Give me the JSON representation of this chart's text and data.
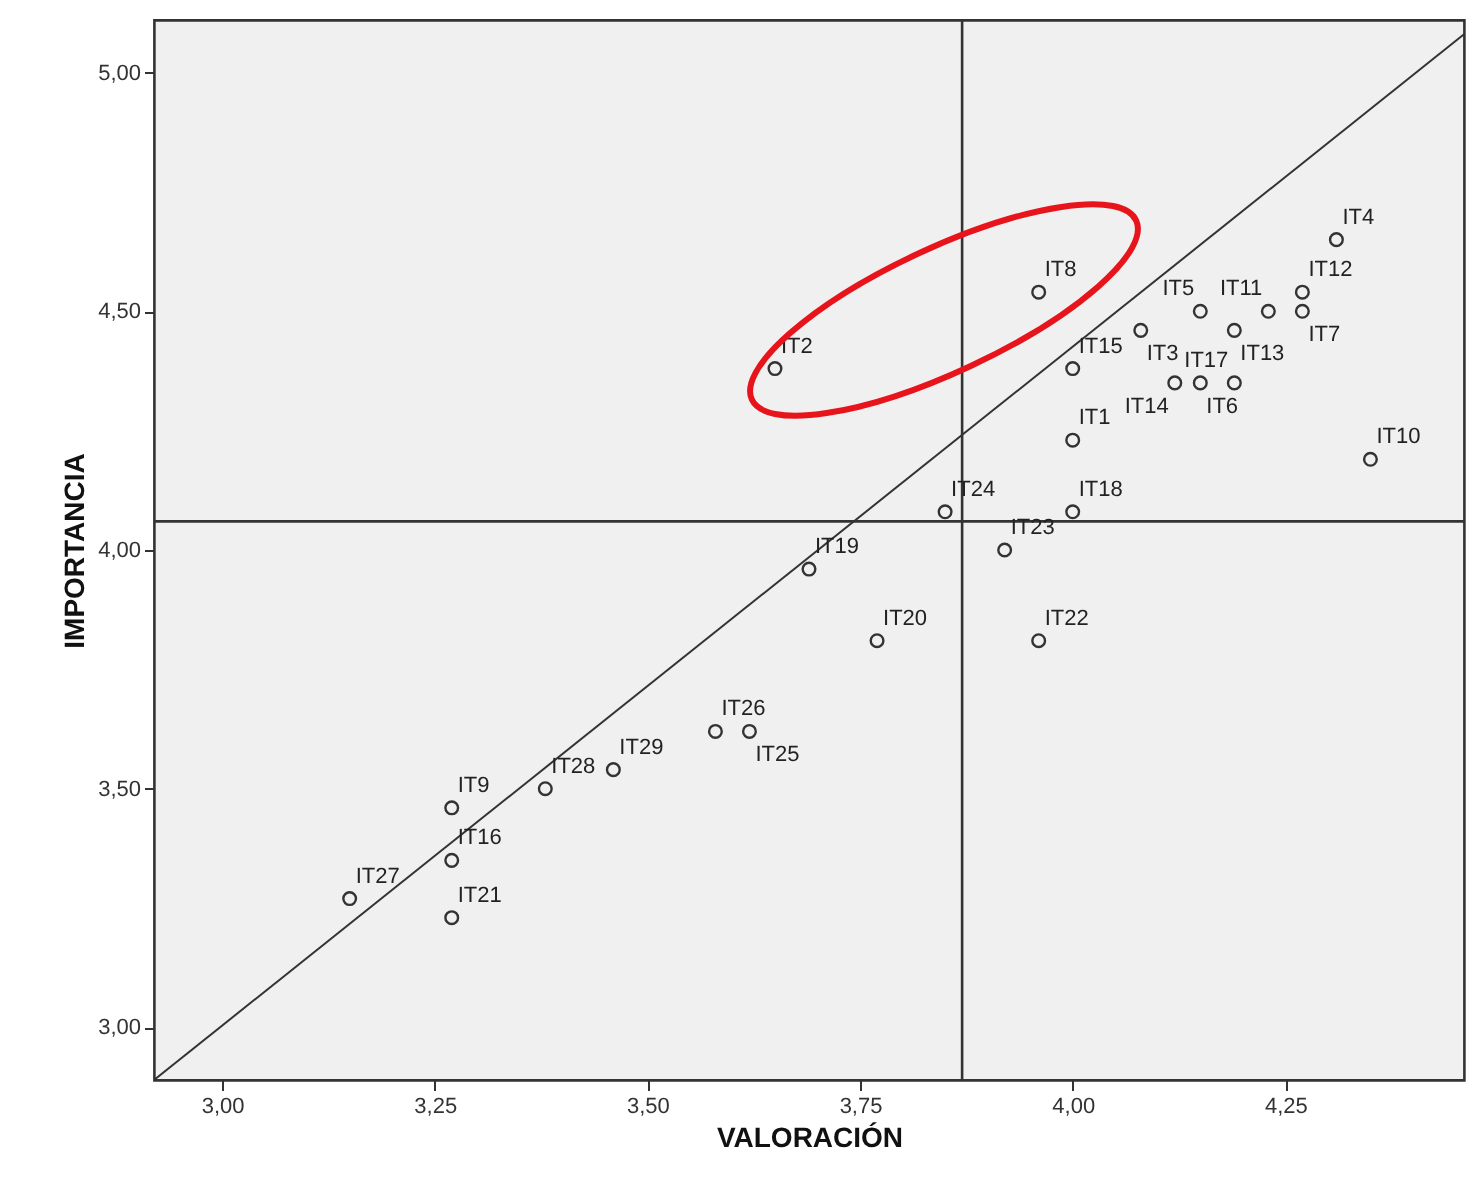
{
  "chart_data": {
    "type": "scatter",
    "xlabel": "VALORACIÓN",
    "ylabel": "IMPORTANCIA",
    "xlim": [
      2.92,
      4.46
    ],
    "ylim": [
      2.89,
      5.11
    ],
    "xticks": [
      {
        "value": 3,
        "label": "3,00"
      },
      {
        "value": 3.25,
        "label": "3,25"
      },
      {
        "value": 3.5,
        "label": "3,50"
      },
      {
        "value": 3.75,
        "label": "3,75"
      },
      {
        "value": 4,
        "label": "4,00"
      },
      {
        "value": 4.25,
        "label": "4,25"
      }
    ],
    "yticks": [
      {
        "value": 3,
        "label": "3,00"
      },
      {
        "value": 3.5,
        "label": "3,50"
      },
      {
        "value": 4,
        "label": "4,00"
      },
      {
        "value": 4.5,
        "label": "4,50"
      },
      {
        "value": 5,
        "label": "5,00"
      }
    ],
    "grid": false,
    "marker": "circle",
    "series": [
      {
        "color": "#333333",
        "x": [
          4.31,
          4.27,
          4.27,
          4.23,
          4.19,
          4.15,
          4.08,
          3.96,
          4.0,
          4.15,
          4.12,
          4.19,
          4.0,
          4.35,
          3.65,
          3.85,
          4.0,
          3.92,
          3.69,
          3.77,
          3.96,
          3.58,
          3.62,
          3.46,
          3.38,
          3.27,
          3.27,
          3.27,
          3.15
        ],
        "values": [
          4.65,
          4.54,
          4.5,
          4.5,
          4.46,
          4.5,
          4.46,
          4.54,
          4.38,
          4.35,
          4.35,
          4.35,
          4.23,
          4.19,
          4.38,
          4.08,
          4.08,
          4.0,
          3.96,
          3.81,
          3.81,
          3.62,
          3.62,
          3.54,
          3.5,
          3.46,
          3.35,
          3.23,
          3.27
        ]
      },
      {
        "type": "line",
        "color": "#333333",
        "line_style": "solid",
        "marker": "none",
        "x": [
          2.92,
          4.46
        ],
        "values": [
          2.89,
          5.08
        ]
      }
    ],
    "ref_lines": [
      {
        "axis": "x",
        "value": 3.87,
        "color": "#333333"
      },
      {
        "axis": "y",
        "value": 4.06,
        "color": "#333333"
      }
    ],
    "annotations": [
      {
        "text": "IT4",
        "x": 4.31,
        "y": 4.65
      },
      {
        "text": "IT12",
        "x": 4.27,
        "y": 4.54
      },
      {
        "text": "IT7",
        "x": 4.27,
        "y": 4.5
      },
      {
        "text": "IT11",
        "x": 4.23,
        "y": 4.5
      },
      {
        "text": "IT13",
        "x": 4.19,
        "y": 4.46
      },
      {
        "text": "IT5",
        "x": 4.15,
        "y": 4.5
      },
      {
        "text": "IT3",
        "x": 4.08,
        "y": 4.46
      },
      {
        "text": "IT8",
        "x": 3.96,
        "y": 4.54
      },
      {
        "text": "IT15",
        "x": 4.0,
        "y": 4.38
      },
      {
        "text": "IT6",
        "x": 4.15,
        "y": 4.35
      },
      {
        "text": "IT14",
        "x": 4.12,
        "y": 4.35
      },
      {
        "text": "IT17",
        "x": 4.19,
        "y": 4.35
      },
      {
        "text": "IT1",
        "x": 4.0,
        "y": 4.23
      },
      {
        "text": "IT10",
        "x": 4.35,
        "y": 4.19
      },
      {
        "text": "IT2",
        "x": 3.65,
        "y": 4.38
      },
      {
        "text": "IT24",
        "x": 3.85,
        "y": 4.08
      },
      {
        "text": "IT18",
        "x": 4.0,
        "y": 4.08
      },
      {
        "text": "IT23",
        "x": 3.92,
        "y": 4.0
      },
      {
        "text": "IT19",
        "x": 3.69,
        "y": 3.96
      },
      {
        "text": "IT20",
        "x": 3.77,
        "y": 3.81
      },
      {
        "text": "IT22",
        "x": 3.96,
        "y": 3.81
      },
      {
        "text": "IT26",
        "x": 3.58,
        "y": 3.62
      },
      {
        "text": "IT25",
        "x": 3.62,
        "y": 3.62
      },
      {
        "text": "IT29",
        "x": 3.46,
        "y": 3.54
      },
      {
        "text": "IT28",
        "x": 3.38,
        "y": 3.5
      },
      {
        "text": "IT9",
        "x": 3.27,
        "y": 3.46
      },
      {
        "text": "IT16",
        "x": 3.27,
        "y": 3.35
      },
      {
        "text": "IT21",
        "x": 3.27,
        "y": 3.23
      },
      {
        "text": "IT27",
        "x": 3.15,
        "y": 3.27
      }
    ]
  }
}
